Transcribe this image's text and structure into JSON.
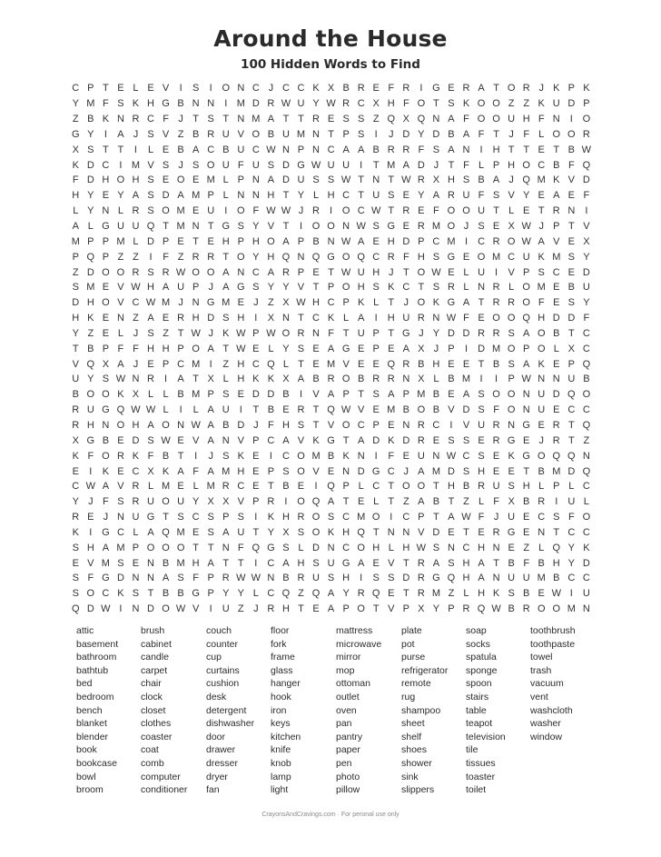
{
  "title": "Around the House",
  "subtitle": "100 Hidden Words to Find",
  "grid_rows": [
    "CPTELEVISIONCJCCKXBREFRIGERATORJKPK",
    "YMFSKHGBNNIMDRWUYWRCXHFOTSKOOZZKUDP",
    "ZBKNRCFJTSTNMATTRESSZQXQNAFOOUHFNIO",
    "GYIAJSVZBRUVOBUMNTPSIJDYDBAFTJFLOOR",
    "XSTTILEBACBUCWNPNCAABRRFSANIHTTETBW",
    "KDCIMVSJSOUFUSDGWUUITMADJTFLPHOCBFQ",
    "FDHOHSEOEMLPNADUSSWTNTWRXHSBAJQMKVD",
    "HYEYASDAMPLNNHTYLHCTUSEYARUFSVYEAEF",
    "LYNLRSOMEUIOFWWJRIOCWTREFOOUTLETRNI",
    "ALGUUQTMNTGSYVTIOONWSGERMOJSEXWJPTV",
    "MPPMLDPETEHPHOAPBNWAEHDPCMICROWAVEX",
    "PQPZZIFZRRTOYHQNQGOQCRFHSGEOMCUKMSY",
    "ZDOORSRWOOANCARPETWUHJTOWELUIVPSCED",
    "SMEVWHAUPJAGSYYVTPOHSKCTSRLNRLOMEBU",
    "DHOVCWMJNGMEJZXWHCPKLTJOKGATRROFESY",
    "HKENZAERHDSHIXNTCKLAIHURNWFEOOQHDDF",
    "YZELJSZTWJKWPWORNFTUPTGJYDDRRSAOBTC",
    "TBPFFHHPOATWELYSEAGEPEAXJPIDMOPOLXC",
    "VQXAJEPCMIZHCQLTEMVEEQRBHEETBSAKEPQ",
    "UYSWNRIATXLHKKXABROBRRNXLBMIIPWNNUB",
    "BOOKXLLBMPSEDDBIVAPTSAPMBEASOONUDQO",
    "RUGQWWLILAUITBERTQWVEMBOBVDSFONUECC",
    "RHNOHAONWABDJFHSTVOCPENRCIVURNGERTQ",
    "XGBEDSWEVANVPCAVKGTADKDRESSERGEJRTZ",
    "KFORKFBTIJSKEICOMBKNIFEUNWCSEKGOQQN",
    "EIKECXKAFAMHEPSOVENDGCJAMDSHEETBMDQ",
    "CWAVRLMELMRCETBEIQPLCTOOTHBRUSHLPLC",
    "YJFSRUOUYXXVPRIOQATELTZABTZLFXBRIUL",
    "REJNUGTSCSPSIKHROSCMOICPTAWFJUECSFO",
    "KIGCLAQMESAUTYXSOKHQTNNVDETERGENTCC",
    "SHAMPOOOTTNFQGSLDNCOHLHWSNCHNEZLQYK",
    "EVMSENBMHATTICAHSUGAEVTRASHATBFBHYD",
    "SFGDNNASFPRWWNBRUSHISSDRGQHANUUMBCC",
    "SOCKSTBBGPYYLCQZQAYRQETRMZLHKSBEWIU",
    "QDWINDOWVIUZJRHTEAPOTVPXYPRQWBROOMN"
  ],
  "words": [
    "attic",
    "basement",
    "bathroom",
    "bathtub",
    "bed",
    "bedroom",
    "bench",
    "blanket",
    "blender",
    "book",
    "bookcase",
    "bowl",
    "broom",
    "brush",
    "cabinet",
    "candle",
    "carpet",
    "chair",
    "clock",
    "closet",
    "clothes",
    "coaster",
    "coat",
    "comb",
    "computer",
    "conditioner",
    "couch",
    "counter",
    "cup",
    "curtains",
    "cushion",
    "desk",
    "detergent",
    "dishwasher",
    "door",
    "drawer",
    "dresser",
    "dryer",
    "fan",
    "floor",
    "fork",
    "frame",
    "glass",
    "hanger",
    "hook",
    "iron",
    "keys",
    "kitchen",
    "knife",
    "knob",
    "lamp",
    "light",
    "mattress",
    "microwave",
    "mirror",
    "mop",
    "ottoman",
    "outlet",
    "oven",
    "pan",
    "pantry",
    "paper",
    "pen",
    "photo",
    "pillow",
    "plate",
    "pot",
    "purse",
    "refrigerator",
    "remote",
    "rug",
    "shampoo",
    "sheet",
    "shelf",
    "shoes",
    "shower",
    "sink",
    "slippers",
    "soap",
    "socks",
    "spatula",
    "sponge",
    "spoon",
    "stairs",
    "table",
    "teapot",
    "television",
    "tile",
    "tissues",
    "toaster",
    "toilet",
    "toothbrush",
    "toothpaste",
    "towel",
    "trash",
    "vacuum",
    "vent",
    "washcloth",
    "washer",
    "window"
  ],
  "footer": "CrayonsAndCravings.com · For peronal use only"
}
